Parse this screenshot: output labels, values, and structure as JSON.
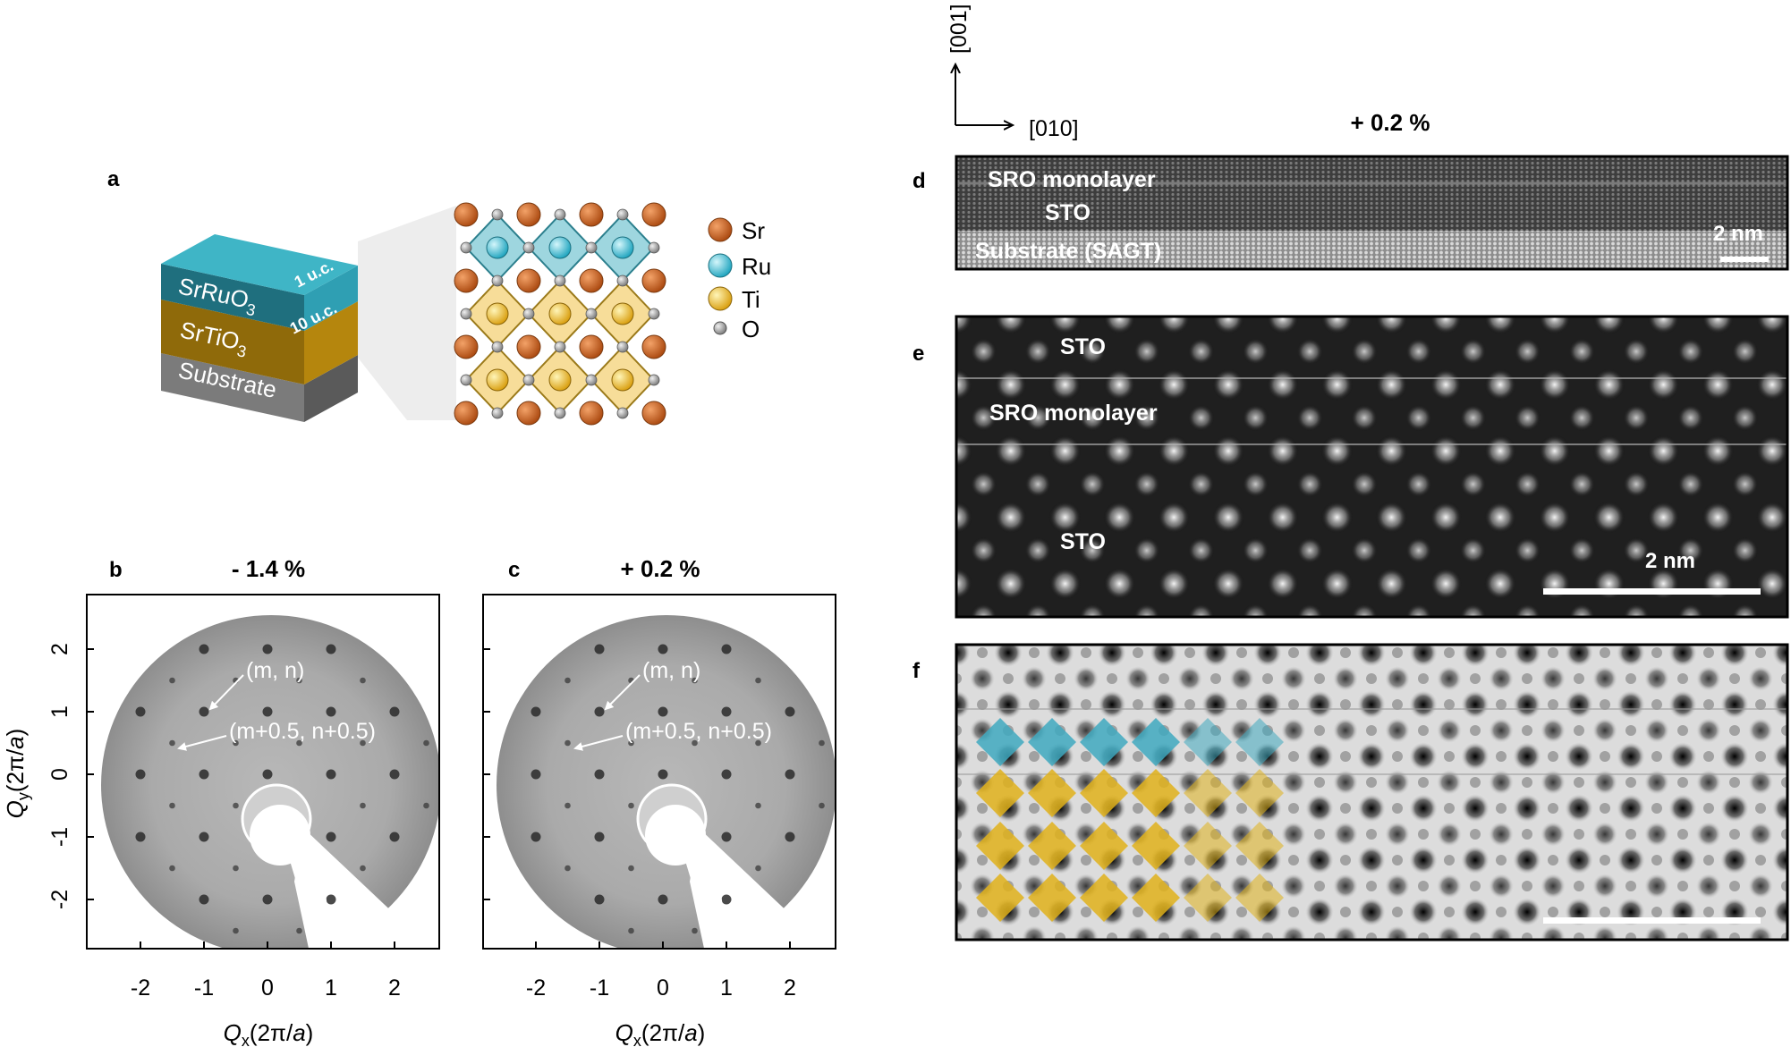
{
  "panels": {
    "a": {
      "label": "a",
      "layers": [
        {
          "name": "SrRuO",
          "sub": "3",
          "thickness": "1 u.c."
        },
        {
          "name": "SrTiO",
          "sub": "3",
          "thickness": "10 u.c."
        },
        {
          "name": "Substrate",
          "sub": "",
          "thickness": ""
        }
      ],
      "legend": [
        {
          "element": "Sr",
          "color": "#c8611c"
        },
        {
          "element": "Ru",
          "color": "#5cc4d6"
        },
        {
          "element": "Ti",
          "color": "#f2c230"
        },
        {
          "element": "O",
          "color": "#9a9a9a"
        }
      ]
    },
    "b": {
      "label": "b",
      "title": "- 1.4 %",
      "annotation_1": "(m, n)",
      "annotation_2": "(m+0.5, n+0.5)"
    },
    "c": {
      "label": "c",
      "title": "+ 0.2 %",
      "annotation_1": "(m, n)",
      "annotation_2": "(m+0.5, n+0.5)"
    },
    "d": {
      "label": "d",
      "strain": "+ 0.2 %",
      "axis_up": "[001]",
      "axis_right": "[010]",
      "lines": [
        "SRO monolayer",
        "STO",
        "Substrate (SAGT)"
      ],
      "scale": "2 nm"
    },
    "e": {
      "label": "e",
      "lines": [
        "STO",
        "SRO monolayer",
        "STO"
      ],
      "scale": "2 nm"
    },
    "f": {
      "label": "f"
    }
  },
  "axes": {
    "ylabel": "Qy (2π/a)",
    "ylabel_main": "Q",
    "ylabel_sub": "y",
    "xlabel_main": "Q",
    "xlabel_sub": "x",
    "unit": "(2π/a)",
    "unit_prefix": "(2π/",
    "unit_italic": "a",
    "unit_suffix": ")",
    "xticks": [
      "-2",
      "-1",
      "0",
      "1",
      "2"
    ],
    "yticks": [
      "2",
      "1",
      "0",
      "-1",
      "-2"
    ]
  },
  "colors": {
    "sr": "#c8611c",
    "ru": "#5cc4d6",
    "ti": "#f2c230",
    "o": "#9a9a9a",
    "teal_layer": "#2f9fb3",
    "gold_layer": "#b58a0c",
    "substrate_layer": "#6e6e6e"
  }
}
